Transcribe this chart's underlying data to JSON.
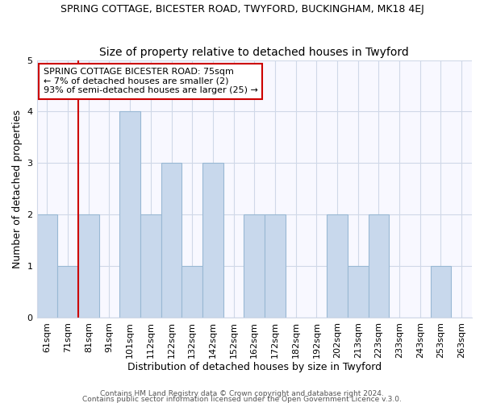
{
  "title": "SPRING COTTAGE, BICESTER ROAD, TWYFORD, BUCKINGHAM, MK18 4EJ",
  "subtitle": "Size of property relative to detached houses in Twyford",
  "xlabel": "Distribution of detached houses by size in Twyford",
  "ylabel": "Number of detached properties",
  "bar_labels": [
    "61sqm",
    "71sqm",
    "81sqm",
    "91sqm",
    "101sqm",
    "112sqm",
    "122sqm",
    "132sqm",
    "142sqm",
    "152sqm",
    "162sqm",
    "172sqm",
    "182sqm",
    "192sqm",
    "202sqm",
    "213sqm",
    "223sqm",
    "233sqm",
    "243sqm",
    "253sqm",
    "263sqm"
  ],
  "bar_values": [
    2,
    1,
    2,
    0,
    4,
    2,
    3,
    1,
    3,
    0,
    2,
    2,
    0,
    0,
    2,
    1,
    2,
    0,
    0,
    1,
    0
  ],
  "bar_color": "#c8d8ec",
  "bar_edgecolor": "#99b8d4",
  "subject_line_color": "#cc0000",
  "subject_line_index": 1.5,
  "ylim": [
    0,
    5
  ],
  "yticks": [
    0,
    1,
    2,
    3,
    4,
    5
  ],
  "annotation_title": "SPRING COTTAGE BICESTER ROAD: 75sqm",
  "annotation_line1": "← 7% of detached houses are smaller (2)",
  "annotation_line2": "93% of semi-detached houses are larger (25) →",
  "annotation_box_facecolor": "#ffffff",
  "annotation_box_edgecolor": "#cc0000",
  "footer1": "Contains HM Land Registry data © Crown copyright and database right 2024.",
  "footer2": "Contains public sector information licensed under the Open Government Licence v.3.0.",
  "title_fontsize": 9,
  "subtitle_fontsize": 10,
  "xlabel_fontsize": 9,
  "ylabel_fontsize": 9,
  "tick_fontsize": 8,
  "annot_fontsize": 8,
  "footer_fontsize": 6.5,
  "grid_color": "#d0d8e8",
  "bg_color": "#f8f8ff"
}
